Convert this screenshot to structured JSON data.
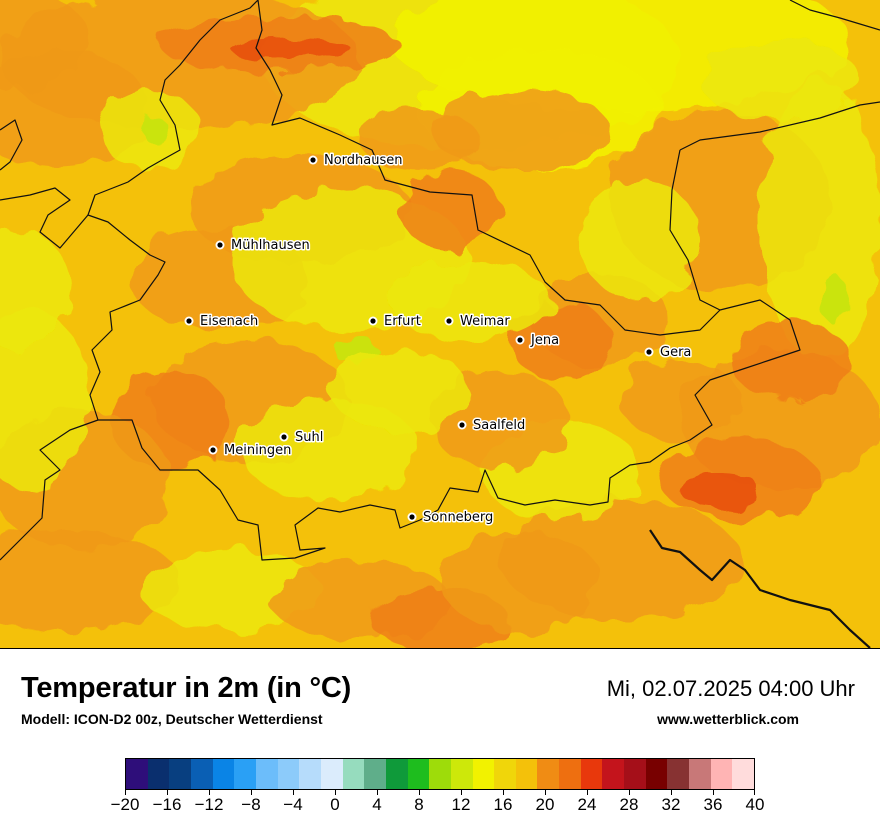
{
  "map": {
    "colors": {
      "base": "#f4c10a",
      "warm": "#f09a18",
      "hot": "#ee7f16",
      "veryhot": "#e8530e",
      "yellow": "#ece808",
      "brightyellow": "#f2f200",
      "green": "#c8e40a"
    },
    "cities": [
      {
        "name": "Nordhausen"
      },
      {
        "name": "Mühlhausen"
      },
      {
        "name": "Eisenach"
      },
      {
        "name": "Erfurt"
      },
      {
        "name": "Weimar"
      },
      {
        "name": "Jena"
      },
      {
        "name": "Gera"
      },
      {
        "name": "Saalfeld"
      },
      {
        "name": "Suhl"
      },
      {
        "name": "Meiningen"
      },
      {
        "name": "Sonneberg"
      }
    ]
  },
  "footer": {
    "title": "Temperatur in 2m (in °C)",
    "subtitle": "Modell: ICON-D2 00z, Deutscher Wetterdienst",
    "datetime": "Mi, 02.07.2025 04:00 Uhr",
    "website": "www.wetterblick.com"
  },
  "legend": {
    "colors": [
      "#2e0e7a",
      "#0a2f6e",
      "#083f80",
      "#0a5fb4",
      "#0a84e6",
      "#2aa0f5",
      "#6cbdfa",
      "#8ccbfa",
      "#b6dcfb",
      "#dbecfc",
      "#96dcbe",
      "#5fae8a",
      "#0f9a3a",
      "#1ebd1e",
      "#9edc0a",
      "#cde80a",
      "#f2f200",
      "#f0d60a",
      "#f4c10a",
      "#f08c14",
      "#ee6f10",
      "#e8380c",
      "#c4141c",
      "#a50f19",
      "#780000",
      "#873232",
      "#c87878",
      "#ffb4b4",
      "#ffdcdc"
    ],
    "labels": [
      "−20",
      "−16",
      "−12",
      "−8",
      "−4",
      "0",
      "4",
      "8",
      "12",
      "16",
      "20",
      "24",
      "28",
      "32",
      "36",
      "40"
    ]
  }
}
